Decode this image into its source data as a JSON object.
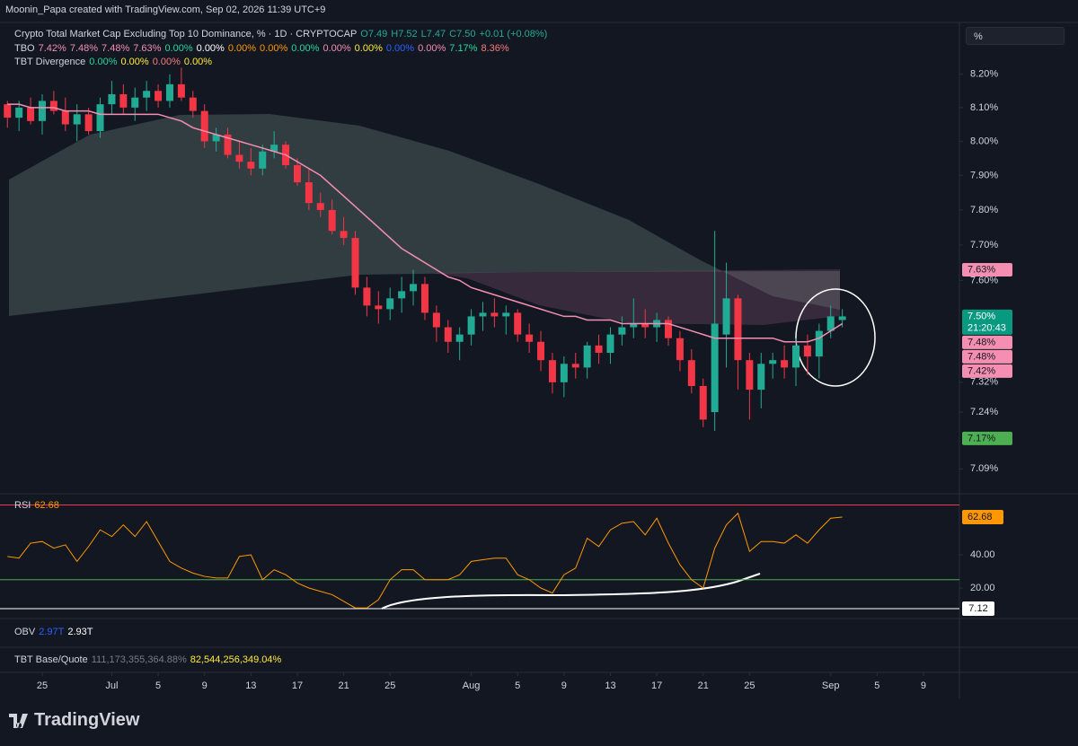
{
  "header": "Moonin_Papa created with TradingView.com, Sep 02, 2026 11:39 UTC+9",
  "scale_button": "%",
  "brand": "TradingView",
  "rsi_hline_label": "7.12",
  "legend": {
    "symbol": "Crypto Total Market Cap Excluding Top 10 Dominance, % · 1D · CRYPTOCAP",
    "ohlc": [
      {
        "text": "O7.49",
        "color": "#22ab94"
      },
      {
        "text": "H7.52",
        "color": "#22ab94"
      },
      {
        "text": "L7.47",
        "color": "#22ab94"
      },
      {
        "text": "C7.50",
        "color": "#22ab94"
      },
      {
        "text": "+0.01 (+0.08%)",
        "color": "#22ab94"
      }
    ]
  },
  "indicators": [
    {
      "name": "TBO",
      "items": [
        {
          "text": "7.42%",
          "color": "#f48fb1"
        },
        {
          "text": "7.48%",
          "color": "#f48fb1"
        },
        {
          "text": "7.48%",
          "color": "#f48fb1"
        },
        {
          "text": "7.63%",
          "color": "#f48fb1"
        },
        {
          "text": "0.00%",
          "color": "#26d9a0"
        },
        {
          "text": "0.00%",
          "color": "#ffffff"
        },
        {
          "text": "0.00%",
          "color": "#ff9800"
        },
        {
          "text": "0.00%",
          "color": "#ff9800"
        },
        {
          "text": "0.00%",
          "color": "#26d9a0"
        },
        {
          "text": "0.00%",
          "color": "#f48fb1"
        },
        {
          "text": "0.00%",
          "color": "#ffeb3b"
        },
        {
          "text": "0.00%",
          "color": "#2962ff"
        },
        {
          "text": "0.00%",
          "color": "#f48fb1"
        },
        {
          "text": "7.17%",
          "color": "#26d9a0"
        },
        {
          "text": "8.36%",
          "color": "#f77c80"
        }
      ]
    },
    {
      "name": "TBT Divergence",
      "items": [
        {
          "text": "0.00%",
          "color": "#26d9a0"
        },
        {
          "text": "0.00%",
          "color": "#ffeb3b"
        },
        {
          "text": "0.00%",
          "color": "#f77c80"
        },
        {
          "text": "0.00%",
          "color": "#ffeb3b"
        }
      ]
    },
    {
      "name": "OBV",
      "items": [
        {
          "text": "2.97T",
          "color": "#2962ff"
        },
        {
          "text": "2.93T",
          "color": "#ffffff"
        }
      ]
    },
    {
      "name": "TBT Base/Quote",
      "items": [
        {
          "text": "111,173,355,364.88%",
          "color": "#787b86"
        },
        {
          "text": "82,544,256,349.04%",
          "color": "#ffeb3b"
        }
      ]
    }
  ],
  "chart_data": [
    {
      "type": "candlestick",
      "log": true,
      "grid": false,
      "up_color": "#22ab94",
      "down_color": "#f23645",
      "ylim": [
        7.03,
        8.35
      ],
      "yticks": [
        {
          "value": 8.2,
          "label": "8.20%"
        },
        {
          "value": 8.1,
          "label": "8.10%"
        },
        {
          "value": 8.0,
          "label": "8.00%"
        },
        {
          "value": 7.9,
          "label": "7.90%"
        },
        {
          "value": 7.8,
          "label": "7.80%"
        },
        {
          "value": 7.7,
          "label": "7.70%"
        },
        {
          "value": 7.6,
          "label": "7.60%"
        },
        {
          "value": 7.32,
          "label": "7.32%"
        },
        {
          "value": 7.24,
          "label": "7.24%"
        },
        {
          "value": 7.09,
          "label": "7.09%"
        }
      ],
      "xlim": [
        -0.64,
        82.1
      ],
      "xticks": [
        {
          "value": 3,
          "label": "25"
        },
        {
          "value": 9,
          "label": "Jul"
        },
        {
          "value": 13,
          "label": "5"
        },
        {
          "value": 17,
          "label": "9"
        },
        {
          "value": 21,
          "label": "13"
        },
        {
          "value": 25,
          "label": "17"
        },
        {
          "value": 29,
          "label": "21"
        },
        {
          "value": 33,
          "label": "25"
        },
        {
          "value": 40,
          "label": "Aug"
        },
        {
          "value": 44,
          "label": "5"
        },
        {
          "value": 48,
          "label": "9"
        },
        {
          "value": 52,
          "label": "13"
        },
        {
          "value": 56,
          "label": "17"
        },
        {
          "value": 60,
          "label": "21"
        },
        {
          "value": 64,
          "label": "25"
        },
        {
          "value": 71,
          "label": "Sep"
        },
        {
          "value": 75,
          "label": "5"
        },
        {
          "value": 79,
          "label": "9"
        }
      ],
      "open": [
        8.11,
        8.07,
        8.1,
        8.06,
        8.12,
        8.09,
        8.05,
        8.08,
        8.03,
        8.11,
        8.14,
        8.1,
        8.13,
        8.15,
        8.12,
        8.17,
        8.13,
        8.09,
        8.0,
        8.02,
        7.96,
        7.94,
        7.92,
        7.97,
        7.99,
        7.93,
        7.88,
        7.82,
        7.8,
        7.74,
        7.72,
        7.58,
        7.53,
        7.52,
        7.55,
        7.57,
        7.59,
        7.51,
        7.47,
        7.43,
        7.45,
        7.5,
        7.51,
        7.5,
        7.51,
        7.45,
        7.43,
        7.38,
        7.32,
        7.37,
        7.36,
        7.42,
        7.4,
        7.45,
        7.47,
        7.48,
        7.47,
        7.49,
        7.44,
        7.38,
        7.31,
        7.24,
        7.45,
        7.55,
        7.38,
        7.3,
        7.37,
        7.38,
        7.36,
        7.42,
        7.39,
        7.46,
        7.49
      ],
      "high": [
        8.12,
        8.12,
        8.13,
        8.14,
        8.15,
        8.13,
        8.11,
        8.1,
        8.13,
        8.18,
        8.17,
        8.16,
        8.18,
        8.17,
        8.2,
        8.22,
        8.15,
        8.11,
        8.04,
        8.04,
        8.0,
        7.98,
        7.99,
        8.03,
        8.0,
        7.95,
        7.92,
        7.85,
        7.83,
        7.78,
        7.74,
        7.61,
        7.57,
        7.58,
        7.61,
        7.63,
        7.61,
        7.53,
        7.49,
        7.47,
        7.52,
        7.54,
        7.55,
        7.53,
        7.52,
        7.48,
        7.46,
        7.4,
        7.39,
        7.4,
        7.43,
        7.45,
        7.47,
        7.5,
        7.55,
        7.52,
        7.51,
        7.5,
        7.46,
        7.41,
        7.33,
        7.74,
        7.65,
        7.56,
        7.4,
        7.4,
        7.4,
        7.42,
        7.44,
        7.45,
        7.48,
        7.53,
        7.52
      ],
      "low": [
        8.04,
        8.03,
        8.05,
        8.02,
        8.08,
        8.03,
        8.0,
        8.02,
        8.01,
        8.08,
        8.08,
        8.06,
        8.09,
        8.1,
        8.1,
        8.12,
        8.07,
        7.98,
        7.97,
        7.95,
        7.92,
        7.9,
        7.9,
        7.95,
        7.92,
        7.87,
        7.8,
        7.78,
        7.73,
        7.7,
        7.56,
        7.5,
        7.48,
        7.49,
        7.51,
        7.53,
        7.49,
        7.43,
        7.4,
        7.38,
        7.42,
        7.46,
        7.47,
        7.45,
        7.43,
        7.4,
        7.35,
        7.29,
        7.28,
        7.33,
        7.33,
        7.37,
        7.37,
        7.42,
        7.44,
        7.44,
        7.43,
        7.42,
        7.35,
        7.29,
        7.2,
        7.19,
        7.36,
        7.3,
        7.22,
        7.25,
        7.33,
        7.33,
        7.31,
        7.34,
        7.33,
        7.44,
        7.47
      ],
      "close": [
        8.07,
        8.1,
        8.06,
        8.12,
        8.09,
        8.05,
        8.08,
        8.03,
        8.11,
        8.14,
        8.1,
        8.13,
        8.15,
        8.12,
        8.17,
        8.13,
        8.09,
        8.0,
        8.02,
        7.96,
        7.94,
        7.92,
        7.97,
        7.99,
        7.93,
        7.88,
        7.82,
        7.8,
        7.74,
        7.72,
        7.58,
        7.53,
        7.52,
        7.55,
        7.57,
        7.59,
        7.51,
        7.47,
        7.43,
        7.45,
        7.5,
        7.51,
        7.5,
        7.51,
        7.45,
        7.43,
        7.38,
        7.32,
        7.37,
        7.36,
        7.42,
        7.4,
        7.45,
        7.47,
        7.48,
        7.47,
        7.49,
        7.44,
        7.38,
        7.31,
        7.22,
        7.48,
        7.55,
        7.38,
        7.3,
        7.37,
        7.38,
        7.36,
        7.42,
        7.39,
        7.46,
        7.5,
        7.5
      ],
      "lines": [
        {
          "color": "#f48fb1",
          "values": [
            8.11,
            8.11,
            8.1,
            8.1,
            8.1,
            8.09,
            8.09,
            8.09,
            8.08,
            8.08,
            8.08,
            8.08,
            8.08,
            8.08,
            8.07,
            8.06,
            8.04,
            8.03,
            8.02,
            8.01,
            8.0,
            7.99,
            7.98,
            7.97,
            7.96,
            7.94,
            7.92,
            7.9,
            7.87,
            7.84,
            7.81,
            7.78,
            7.75,
            7.72,
            7.69,
            7.67,
            7.65,
            7.63,
            7.61,
            7.6,
            7.58,
            7.57,
            7.56,
            7.55,
            7.54,
            7.53,
            7.52,
            7.51,
            7.5,
            7.5,
            7.49,
            7.49,
            7.49,
            7.48,
            7.48,
            7.48,
            7.48,
            7.48,
            7.47,
            7.46,
            7.45,
            7.44,
            7.44,
            7.44,
            7.44,
            7.44,
            7.44,
            7.43,
            7.43,
            7.43,
            7.44,
            7.46,
            7.48
          ]
        }
      ],
      "price_labels": [
        {
          "value": 7.63,
          "label": "7.63%",
          "color": "#f48fb1",
          "text_color": "#131722"
        },
        {
          "value": 7.5,
          "label": "7.50%",
          "sub": "21:20:43",
          "color": "#089981",
          "text_color": "#ffffff"
        },
        {
          "value": 7.48,
          "label": "7.48%",
          "color": "#f48fb1",
          "text_color": "#131722"
        },
        {
          "value": 7.48,
          "label": "7.48%",
          "color": "#f48fb1",
          "text_color": "#131722"
        },
        {
          "value": 7.42,
          "label": "7.42%",
          "color": "#f48fb1",
          "text_color": "#131722"
        },
        {
          "value": 7.17,
          "label": "7.17%",
          "color": "#4caf50",
          "text_color": "#131722"
        }
      ]
    },
    {
      "type": "line",
      "name": "RSI",
      "color": "#ff9800",
      "last_label": "62.68",
      "ylim": [
        3.8,
        73.5
      ],
      "yticks": [
        {
          "value": 40,
          "label": "40.00"
        },
        {
          "value": 20,
          "label": "20.00"
        }
      ],
      "levels": [
        {
          "value": 70,
          "color": "#f23645"
        },
        {
          "value": 25,
          "color": "#4caf50"
        }
      ],
      "xlim": [
        -0.64,
        82.1
      ],
      "values": [
        39,
        38,
        47,
        48,
        44,
        46,
        36,
        45,
        55,
        51,
        58,
        51,
        60,
        48,
        36,
        32,
        29,
        27,
        26,
        26,
        39,
        40,
        25,
        31,
        28,
        23,
        20,
        18,
        16,
        12,
        8,
        8,
        13,
        25,
        31,
        31,
        25,
        25,
        25,
        28,
        36,
        37,
        38,
        38,
        28,
        25,
        20,
        17,
        28,
        32,
        50,
        45,
        55,
        59,
        60,
        52,
        62,
        47,
        34,
        25,
        20,
        44,
        58,
        65,
        42,
        48,
        48,
        47,
        52,
        47,
        55,
        62,
        62.68
      ]
    }
  ]
}
